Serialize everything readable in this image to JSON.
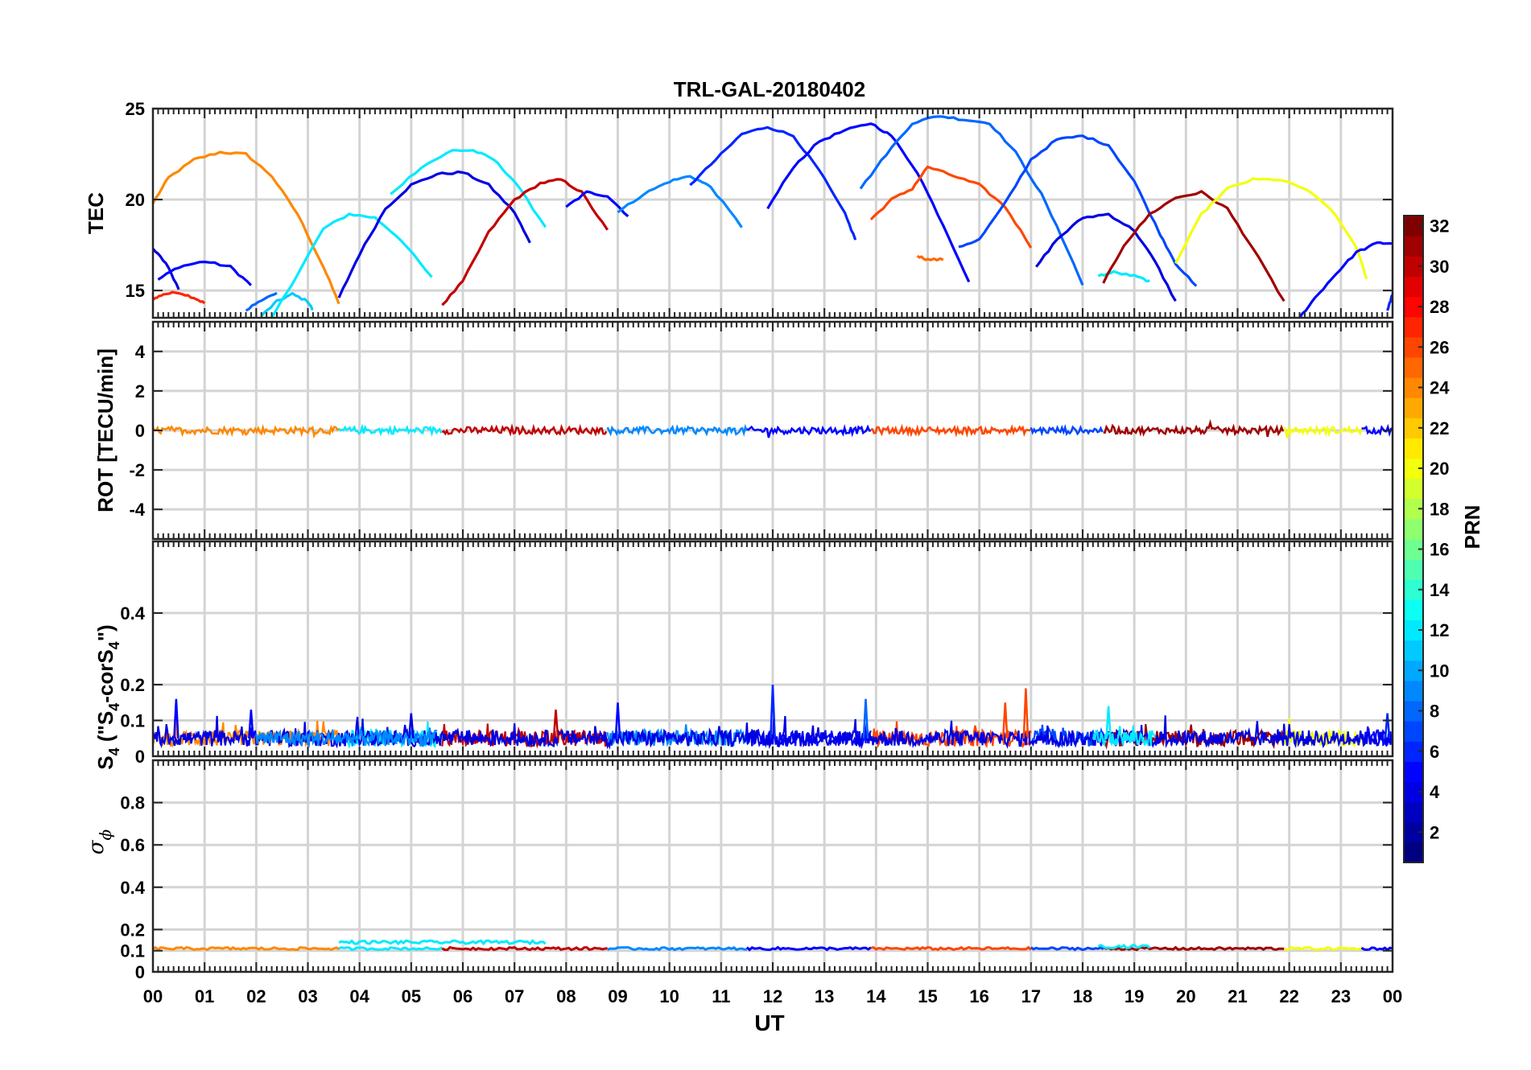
{
  "chart_data": [
    {
      "type": "line",
      "panel": "tec",
      "title": "TRL-GAL-20180402",
      "ylabel": "TEC",
      "ylim": [
        13.5,
        25
      ],
      "yticks": [
        15,
        20,
        25
      ],
      "series": [
        {
          "prn": 24,
          "x": [
            0,
            0.3,
            0.8,
            1.3,
            1.8,
            2.3,
            2.8,
            3.3,
            3.6
          ],
          "y": [
            19.8,
            21.2,
            22.2,
            22.6,
            22.5,
            21.3,
            19.2,
            16.3,
            14.3
          ]
        },
        {
          "prn": 4,
          "x": [
            0,
            0.25,
            0.5
          ],
          "y": [
            17.3,
            16.5,
            15.1
          ]
        },
        {
          "prn": 27,
          "x": [
            0,
            0.2,
            0.5,
            0.8,
            1.0
          ],
          "y": [
            14.5,
            14.8,
            14.9,
            14.6,
            14.3
          ]
        },
        {
          "prn": 5,
          "x": [
            0.1,
            0.5,
            1.0,
            1.5,
            1.9
          ],
          "y": [
            15.6,
            16.3,
            16.6,
            16.3,
            15.3
          ]
        },
        {
          "prn": 11,
          "x": [
            2.1,
            2.4,
            2.7,
            3.0,
            3.1
          ],
          "y": [
            13.6,
            14.4,
            14.8,
            14.4,
            13.9
          ]
        },
        {
          "prn": 8,
          "x": [
            1.8,
            2.1,
            2.4
          ],
          "y": [
            13.9,
            14.5,
            14.8
          ]
        },
        {
          "prn": 12,
          "x": [
            2.3,
            2.8,
            3.3,
            3.8,
            4.3,
            4.8,
            5.4
          ],
          "y": [
            13.5,
            15.9,
            18.4,
            19.2,
            19.0,
            17.8,
            15.7
          ]
        },
        {
          "prn": 4,
          "x": [
            3.6,
            4.0,
            4.5,
            5.0,
            5.5,
            6.0,
            6.5,
            7.0,
            7.3
          ],
          "y": [
            14.6,
            17.0,
            19.5,
            20.8,
            21.4,
            21.5,
            20.8,
            19.3,
            17.6
          ]
        },
        {
          "prn": 12,
          "x": [
            4.6,
            5.2,
            5.8,
            6.2,
            6.6,
            7.0,
            7.6
          ],
          "y": [
            20.3,
            21.8,
            22.7,
            22.7,
            22.2,
            21.0,
            18.5
          ]
        },
        {
          "prn": 30,
          "x": [
            5.6,
            6.0,
            6.5,
            7.0,
            7.5,
            7.9,
            8.3,
            8.8
          ],
          "y": [
            14.2,
            15.5,
            18.2,
            20.0,
            20.9,
            21.1,
            20.4,
            18.3
          ]
        },
        {
          "prn": 5,
          "x": [
            8.0,
            8.4,
            8.8,
            9.2
          ],
          "y": [
            19.6,
            20.4,
            20.2,
            19.1
          ]
        },
        {
          "prn": 9,
          "x": [
            9.0,
            9.5,
            10.0,
            10.4,
            10.8,
            11.4
          ],
          "y": [
            19.3,
            20.3,
            21.0,
            21.3,
            20.7,
            18.5
          ]
        },
        {
          "prn": 6,
          "x": [
            10.4,
            10.9,
            11.4,
            11.9,
            12.4,
            12.9,
            13.4,
            13.6
          ],
          "y": [
            20.8,
            22.2,
            23.6,
            24.0,
            23.5,
            21.6,
            19.2,
            17.8
          ]
        },
        {
          "prn": 5,
          "x": [
            11.9,
            12.4,
            12.9,
            13.4,
            13.9,
            14.3,
            14.8,
            15.3,
            15.8
          ],
          "y": [
            19.5,
            21.8,
            23.2,
            23.8,
            24.2,
            23.5,
            21.5,
            18.6,
            15.5
          ]
        },
        {
          "prn": 8,
          "x": [
            13.7,
            14.2,
            14.7,
            15.2,
            15.7,
            16.2,
            16.7,
            17.2,
            17.7,
            18.0
          ],
          "y": [
            20.6,
            22.5,
            24.2,
            24.6,
            24.4,
            24.2,
            22.6,
            20.3,
            17.3,
            15.3
          ]
        },
        {
          "prn": 26,
          "x": [
            13.9,
            14.3,
            14.7,
            15.0,
            15.5,
            16.0,
            16.5,
            17.0
          ],
          "y": [
            18.9,
            20.0,
            20.6,
            21.8,
            21.3,
            20.8,
            19.6,
            17.4
          ]
        },
        {
          "prn": 25,
          "x": [
            14.8,
            15.0,
            15.3
          ],
          "y": [
            16.9,
            16.7,
            16.7
          ]
        },
        {
          "prn": 7,
          "x": [
            15.6,
            16.0,
            16.5,
            17.0,
            17.5,
            18.0,
            18.5,
            19.0,
            19.5,
            19.8,
            20.2
          ],
          "y": [
            17.4,
            17.8,
            19.8,
            22.2,
            23.3,
            23.5,
            23.0,
            21.0,
            18.1,
            16.5,
            15.2
          ]
        },
        {
          "prn": 4,
          "x": [
            17.1,
            17.5,
            18.0,
            18.5,
            19.0,
            19.4,
            19.8
          ],
          "y": [
            16.3,
            17.8,
            19.0,
            19.2,
            18.3,
            16.6,
            14.4
          ]
        },
        {
          "prn": 12,
          "x": [
            18.3,
            18.6,
            19.0,
            19.3
          ],
          "y": [
            15.8,
            16.0,
            15.8,
            15.5
          ]
        },
        {
          "prn": 31,
          "x": [
            18.4,
            18.8,
            19.3,
            19.8,
            20.3,
            20.8,
            21.3,
            21.9
          ],
          "y": [
            15.4,
            17.5,
            19.2,
            20.1,
            20.4,
            19.5,
            17.3,
            14.4
          ]
        },
        {
          "prn": 20,
          "x": [
            19.8,
            20.3,
            20.8,
            21.3,
            21.8,
            22.3,
            22.8,
            23.3,
            23.5
          ],
          "y": [
            16.5,
            19.2,
            20.6,
            21.1,
            21.1,
            20.6,
            19.5,
            17.4,
            15.6
          ]
        },
        {
          "prn": 5,
          "x": [
            22.2,
            22.5,
            22.9,
            23.3,
            23.7,
            24.0
          ],
          "y": [
            13.5,
            14.6,
            15.9,
            17.1,
            17.6,
            17.6
          ]
        },
        {
          "prn": 6,
          "x": [
            23.9,
            24.0
          ],
          "y": [
            13.9,
            14.8
          ]
        }
      ]
    },
    {
      "type": "line",
      "panel": "rot",
      "ylabel": "ROT [TECU/min]",
      "ylim": [
        -5.5,
        5.5
      ],
      "yticks": [
        -4,
        -2,
        0,
        2,
        4
      ],
      "segments": [
        {
          "prn": 24,
          "from": 0,
          "to": 3.6
        },
        {
          "prn": 12,
          "from": 3.6,
          "to": 5.6
        },
        {
          "prn": 30,
          "from": 5.6,
          "to": 8.8
        },
        {
          "prn": 9,
          "from": 8.8,
          "to": 11.5
        },
        {
          "prn": 5,
          "from": 11.5,
          "to": 13.9
        },
        {
          "prn": 26,
          "from": 13.9,
          "to": 17.0
        },
        {
          "prn": 7,
          "from": 17.0,
          "to": 18.4
        },
        {
          "prn": 31,
          "from": 18.4,
          "to": 21.9
        },
        {
          "prn": 20,
          "from": 21.9,
          "to": 23.4
        },
        {
          "prn": 5,
          "from": 23.4,
          "to": 24.0
        }
      ]
    },
    {
      "type": "line",
      "panel": "s4",
      "ylabel": "S4 (\"S4-corS4\")",
      "ylim": [
        0,
        0.6
      ],
      "yticks": [
        0,
        0.1,
        0.2,
        0.4
      ],
      "baseline": 0.05,
      "peaks": [
        {
          "x": 0.45,
          "y": 0.16,
          "prn": 5
        },
        {
          "x": 1.9,
          "y": 0.13,
          "prn": 5
        },
        {
          "x": 5.0,
          "y": 0.12,
          "prn": 4
        },
        {
          "x": 7.8,
          "y": 0.13,
          "prn": 30
        },
        {
          "x": 9.0,
          "y": 0.15,
          "prn": 5
        },
        {
          "x": 12.0,
          "y": 0.2,
          "prn": 6
        },
        {
          "x": 13.8,
          "y": 0.16,
          "prn": 8
        },
        {
          "x": 16.5,
          "y": 0.15,
          "prn": 26
        },
        {
          "x": 16.9,
          "y": 0.19,
          "prn": 26
        },
        {
          "x": 18.5,
          "y": 0.14,
          "prn": 12
        },
        {
          "x": 23.9,
          "y": 0.12,
          "prn": 6
        }
      ]
    },
    {
      "type": "line",
      "panel": "sigma",
      "ylabel": "σ ϕ",
      "ylim": [
        0,
        1
      ],
      "yticks": [
        0,
        0.1,
        0.2,
        0.4,
        0.6,
        0.8
      ],
      "baseline": 0.11,
      "bumps": [
        {
          "from": 3.6,
          "to": 7.6,
          "y": 0.14,
          "prn": 12
        },
        {
          "from": 18.3,
          "to": 19.3,
          "y": 0.12,
          "prn": 12
        }
      ]
    }
  ],
  "xaxis": {
    "label": "UT",
    "ticks": [
      "00",
      "01",
      "02",
      "03",
      "04",
      "05",
      "06",
      "07",
      "08",
      "09",
      "10",
      "11",
      "12",
      "13",
      "14",
      "15",
      "16",
      "17",
      "18",
      "19",
      "20",
      "21",
      "22",
      "23",
      "00"
    ]
  },
  "colorbar": {
    "label": "PRN",
    "range": [
      1,
      32
    ],
    "ticks": [
      2,
      4,
      6,
      8,
      10,
      12,
      14,
      16,
      18,
      20,
      22,
      24,
      26,
      28,
      30,
      32
    ]
  }
}
